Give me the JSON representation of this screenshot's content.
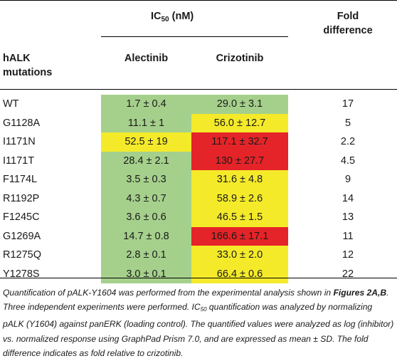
{
  "header": {
    "ic50_label": "IC",
    "ic50_sub": "50",
    "ic50_unit": " (nM)",
    "fold_line1": "Fold",
    "fold_line2": "difference",
    "mutation_line1": "hALK",
    "mutation_line2": "mutations",
    "alectinib": "Alectinib",
    "crizotinib": "Crizotinib"
  },
  "colors": {
    "green": "#a5d08c",
    "yellow": "#f4ea2a",
    "red": "#e42428"
  },
  "rows": [
    {
      "mutation": "WT",
      "alectinib": "1.7 ± 0.4",
      "alectinib_color": "green",
      "crizotinib": "29.0 ± 3.1",
      "crizotinib_color": "green",
      "fold": "17"
    },
    {
      "mutation": "G1128A",
      "alectinib": "11.1 ± 1",
      "alectinib_color": "green",
      "crizotinib": "56.0 ± 12.7",
      "crizotinib_color": "yellow",
      "fold": "5"
    },
    {
      "mutation": "I1171N",
      "alectinib": "52.5 ± 19",
      "alectinib_color": "yellow",
      "crizotinib": "117.1 ± 32.7",
      "crizotinib_color": "red",
      "fold": "2.2"
    },
    {
      "mutation": "I1171T",
      "alectinib": "28.4 ± 2.1",
      "alectinib_color": "green",
      "crizotinib": "130 ± 27.7",
      "crizotinib_color": "red",
      "fold": "4.5"
    },
    {
      "mutation": "F1174L",
      "alectinib": "3.5 ± 0.3",
      "alectinib_color": "green",
      "crizotinib": "31.6 ± 4.8",
      "crizotinib_color": "yellow",
      "fold": "9"
    },
    {
      "mutation": "R1192P",
      "alectinib": "4.3 ± 0.7",
      "alectinib_color": "green",
      "crizotinib": "58.9 ± 2.6",
      "crizotinib_color": "yellow",
      "fold": "14"
    },
    {
      "mutation": "F1245C",
      "alectinib": "3.6 ± 0.6",
      "alectinib_color": "green",
      "crizotinib": "46.5 ± 1.5",
      "crizotinib_color": "yellow",
      "fold": "13"
    },
    {
      "mutation": "G1269A",
      "alectinib": "14.7 ± 0.8",
      "alectinib_color": "green",
      "crizotinib": "166.6 ± 17.1",
      "crizotinib_color": "red",
      "fold": "11"
    },
    {
      "mutation": "R1275Q",
      "alectinib": "2.8 ± 0.1",
      "alectinib_color": "green",
      "crizotinib": "33.0 ± 2.0",
      "crizotinib_color": "yellow",
      "fold": "12"
    },
    {
      "mutation": "Y1278S",
      "alectinib": "3.0 ± 0.1",
      "alectinib_color": "green",
      "crizotinib": "66.4 ± 0.6",
      "crizotinib_color": "yellow",
      "fold": "22"
    }
  ],
  "caption": {
    "part1": "Quantification of pALK-Y1604 was performed from the experimental analysis shown in ",
    "figure_ref": "Figures 2A,B",
    "part2": ". Three independent experiments were performed. IC",
    "sub": "50",
    "part3": " quantification was analyzed by normalizing pALK (Y1604) against panERK (loading control). The quantified values were analyzed as log (inhibitor) vs. normalized response using GraphPad Prism 7.0, and are expressed as mean ± SD. The fold difference indicates as fold relative to crizotinib."
  }
}
